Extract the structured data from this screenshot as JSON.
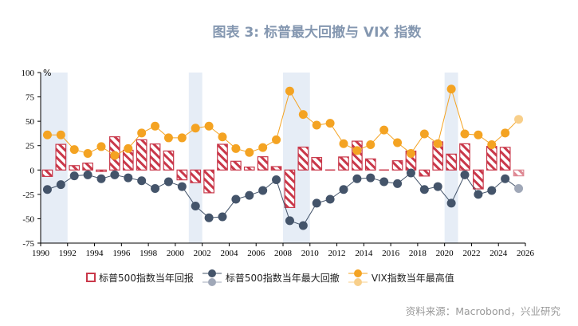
{
  "title": "图表 3:   标普最大回撤与 VIX 指数",
  "source": "资料来源：Macrobond，兴业研究",
  "colors": {
    "bar": "#c9384a",
    "drawdown": "#44546a",
    "drawdown_light": "#a0a8b8",
    "vix": "#f4a322",
    "vix_light": "#f8cf8a",
    "band": "#e6edf6"
  },
  "chart_data": {
    "type": "bar+line",
    "unit_label": "%",
    "xlim": [
      1990,
      2026
    ],
    "ylim": [
      -75,
      100
    ],
    "x_ticks": [
      "1990",
      "1992",
      "1994",
      "1996",
      "1998",
      "2000",
      "2002",
      "2004",
      "2006",
      "2008",
      "2010",
      "2012",
      "2014",
      "2016",
      "2018",
      "2020",
      "2022",
      "2024",
      "2026"
    ],
    "y_ticks": [
      "100",
      "75",
      "50",
      "25",
      "0",
      "-25",
      "-50",
      "-75"
    ],
    "shaded_periods": [
      [
        1990,
        1992
      ],
      [
        2001,
        2002
      ],
      [
        2008,
        2010
      ],
      [
        2020,
        2021
      ]
    ],
    "years": [
      1990,
      1991,
      1992,
      1993,
      1994,
      1995,
      1996,
      1997,
      1998,
      1999,
      2000,
      2001,
      2002,
      2003,
      2004,
      2005,
      2006,
      2007,
      2008,
      2009,
      2010,
      2011,
      2012,
      2013,
      2014,
      2015,
      2016,
      2017,
      2018,
      2019,
      2020,
      2021,
      2022,
      2023,
      2024,
      2025
    ],
    "series": [
      {
        "name": "标普500指数当年回报",
        "type": "bar",
        "values": [
          -6.6,
          26.3,
          4.5,
          7.1,
          -1.5,
          34.1,
          20.3,
          31.0,
          26.7,
          19.5,
          -10.1,
          -13.0,
          -23.4,
          26.4,
          9.0,
          3.0,
          13.6,
          3.5,
          -38.5,
          23.5,
          12.8,
          0.0,
          13.4,
          29.6,
          11.4,
          -0.7,
          9.5,
          19.4,
          -6.2,
          28.9,
          16.3,
          26.9,
          -19.4,
          24.2,
          23.3,
          -6
        ]
      },
      {
        "name": "标普500指数当年最大回撤",
        "type": "line",
        "values": [
          -20,
          -15,
          -6,
          -5,
          -9,
          -5,
          -8,
          -11,
          -19,
          -12,
          -17,
          -37,
          -49,
          -48,
          -30,
          -26,
          -21,
          -10,
          -52,
          -57,
          -34,
          -30,
          -20,
          -9,
          -8,
          -12,
          -14,
          -3,
          -20,
          -17,
          -34,
          -5,
          -25,
          -21,
          -9,
          -19
        ],
        "last_point_faded": true
      },
      {
        "name": "VIX指数当年最高值",
        "type": "line",
        "values": [
          36,
          36,
          21,
          17,
          24,
          15,
          22,
          38,
          45,
          33,
          33,
          43,
          45,
          34,
          22,
          18,
          23,
          31,
          81,
          57,
          46,
          48,
          27,
          20,
          26,
          41,
          28,
          17,
          37,
          27,
          83,
          37,
          36,
          26,
          38,
          52
        ],
        "last_point_faded": true
      }
    ]
  }
}
